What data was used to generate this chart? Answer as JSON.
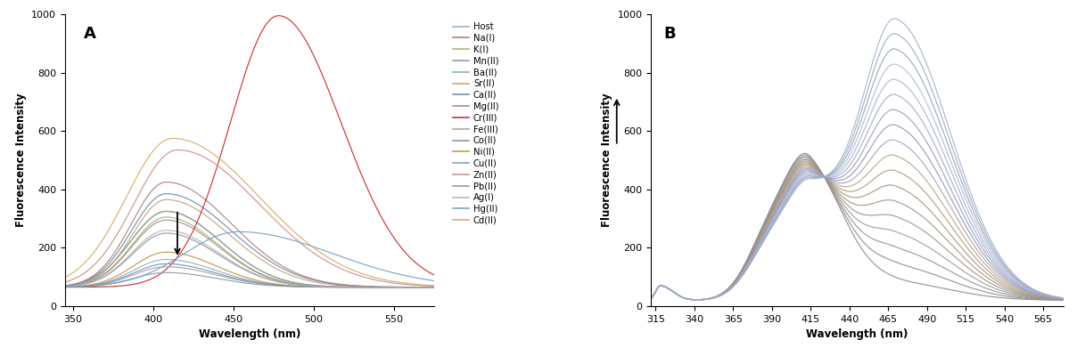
{
  "panel_A": {
    "title": "A",
    "xlabel": "Wavelength (nm)",
    "ylabel": "Fluorescence Intensity",
    "xlim": [
      345,
      575
    ],
    "ylim": [
      0,
      1000
    ],
    "xticks": [
      350,
      400,
      450,
      500,
      550
    ],
    "yticks": [
      0,
      200,
      400,
      600,
      800,
      1000
    ],
    "legend_entries": [
      "Host",
      "Na(I)",
      "K(I)",
      "Mn(II)",
      "Ba(II)",
      "Sr(II)",
      "Ca(II)",
      "Mg(II)",
      "Cr(III)",
      "Fe(III)",
      "Co(II)",
      "Ni(II)",
      "Cu(II)",
      "Zn(II)",
      "Pb(II)",
      "Ag(I)",
      "Hg(II)",
      "Cd(II)"
    ],
    "legend_colors": [
      "#8aafc8",
      "#b87060",
      "#b8a870",
      "#909090",
      "#78b0b0",
      "#c0a078",
      "#6888a8",
      "#b07878",
      "#cc2020",
      "#a0a0a0",
      "#7890a8",
      "#c09040",
      "#8898b0",
      "#cc8888",
      "#9090a0",
      "#b0b0b0",
      "#70a0c0",
      "#d0aa60"
    ],
    "spectra": {
      "Host": {
        "peak": 408,
        "sigma": 24,
        "amp": 95,
        "base": 65
      },
      "Na(I)": {
        "peak": 408,
        "sigma": 26,
        "amp": 260,
        "base": 65
      },
      "K(I)": {
        "peak": 408,
        "sigma": 25,
        "amp": 240,
        "base": 65
      },
      "Mn(II)": {
        "peak": 408,
        "sigma": 25,
        "amp": 230,
        "base": 65
      },
      "Ba(II)": {
        "peak": 408,
        "sigma": 26,
        "amp": 260,
        "base": 65
      },
      "Sr(II)": {
        "peak": 408,
        "sigma": 26,
        "amp": 300,
        "base": 65
      },
      "Ca(II)": {
        "peak": 408,
        "sigma": 27,
        "amp": 320,
        "base": 65
      },
      "Mg(II)": {
        "peak": 408,
        "sigma": 27,
        "amp": 360,
        "base": 65
      },
      "Cr(III)": {
        "peak": 478,
        "sigma": 30,
        "amp": 930,
        "base": 65
      },
      "Fe(III)": {
        "peak": 408,
        "sigma": 24,
        "amp": 70,
        "base": 65
      },
      "Co(II)": {
        "peak": 408,
        "sigma": 24,
        "amp": 80,
        "base": 65
      },
      "Ni(II)": {
        "peak": 408,
        "sigma": 24,
        "amp": 120,
        "base": 65
      },
      "Cu(II)": {
        "peak": 408,
        "sigma": 24,
        "amp": 50,
        "base": 65
      },
      "Zn(II)": {
        "peak": 415,
        "sigma": 34,
        "amp": 470,
        "base": 65
      },
      "Pb(II)": {
        "peak": 408,
        "sigma": 25,
        "amp": 185,
        "base": 65
      },
      "Ag(I)": {
        "peak": 408,
        "sigma": 25,
        "amp": 195,
        "base": 65
      },
      "Hg(II)": {
        "peak": 453,
        "sigma": 42,
        "amp": 190,
        "base": 65
      },
      "Cd(II)": {
        "peak": 412,
        "sigma": 36,
        "amp": 510,
        "base": 65
      }
    }
  },
  "panel_B": {
    "title": "B",
    "xlabel": "Wavelength (nm)",
    "ylabel": "Fluorescence Intensity",
    "xlim": [
      312,
      578
    ],
    "ylim": [
      0,
      1000
    ],
    "xticks": [
      315,
      340,
      365,
      390,
      415,
      440,
      465,
      490,
      515,
      540,
      565
    ],
    "yticks": [
      0,
      200,
      400,
      600,
      800,
      1000
    ],
    "num_curves": 18,
    "colors": [
      "#888888",
      "#999999",
      "#aaaaaa",
      "#998877",
      "#aa9988",
      "#bb9977",
      "#cc9966",
      "#bbaa99",
      "#ccbbaa",
      "#9999aa",
      "#aaaacc",
      "#8899aa",
      "#99aacc",
      "#aabbcc",
      "#bbccdd",
      "#8899bb",
      "#99aabb",
      "#aabbcc"
    ]
  }
}
